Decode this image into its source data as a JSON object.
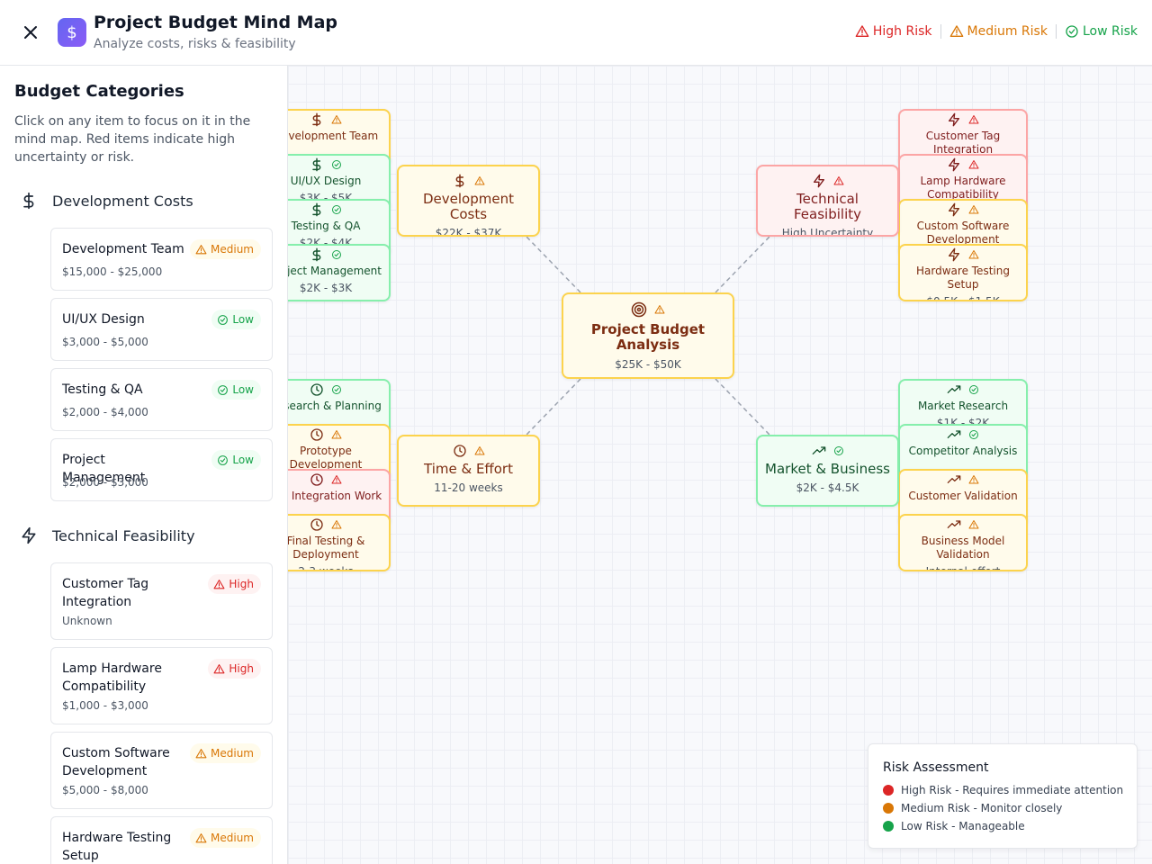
{
  "header": {
    "title": "Project Budget Mind Map",
    "subtitle": "Analyze costs, risks & feasibility",
    "logo_icon": "dollar-icon",
    "legend": {
      "high": "High Risk",
      "medium": "Medium Risk",
      "low": "Low Risk"
    }
  },
  "colors": {
    "high": "#dc2626",
    "medium": "#d97706",
    "low": "#16a34a",
    "accent": "#6366f1"
  },
  "sidebar": {
    "title": "Budget Categories",
    "description": "Click on any item to focus on it in the mind map. Red items indicate high uncertainty or risk.",
    "categories": [
      {
        "name": "Development Costs",
        "icon": "dollar-icon",
        "items": [
          {
            "name": "Development Team",
            "cost": "$15,000 - $25,000",
            "risk": "Medium"
          },
          {
            "name": "UI/UX Design",
            "cost": "$3,000 - $5,000",
            "risk": "Low"
          },
          {
            "name": "Testing & QA",
            "cost": "$2,000 - $4,000",
            "risk": "Low"
          },
          {
            "name": "Project Management",
            "cost": "$2,000 - $3,000",
            "risk": "Low"
          }
        ]
      },
      {
        "name": "Technical Feasibility",
        "icon": "zap-icon",
        "items": [
          {
            "name": "Customer Tag Integration",
            "cost": "Unknown",
            "risk": "High"
          },
          {
            "name": "Lamp Hardware Compatibility",
            "cost": "$1,000 - $3,000",
            "risk": "High"
          },
          {
            "name": "Custom Software Development",
            "cost": "$5,000 - $8,000",
            "risk": "Medium"
          },
          {
            "name": "Hardware Testing Setup",
            "cost": "",
            "risk": "Medium"
          }
        ]
      }
    ]
  },
  "mindmap": {
    "center": {
      "label": "Project Budget Analysis",
      "sub": "$25K - $50K"
    },
    "branches": {
      "dev": {
        "label": "Development Costs",
        "sub": "$22K - $37K"
      },
      "tech": {
        "label": "Technical Feasibility",
        "sub": "High Uncertainty"
      },
      "time": {
        "label": "Time & Effort",
        "sub": "11-20 weeks"
      },
      "market": {
        "label": "Market & Business",
        "sub": "$2K - $4.5K"
      }
    },
    "leaves": {
      "dev": [
        {
          "label": "Development Team",
          "sub": ""
        },
        {
          "label": "UI/UX Design",
          "sub": "$3K - $5K"
        },
        {
          "label": "Testing & QA",
          "sub": "$2K - $4K"
        },
        {
          "label": "Project Management",
          "sub": "$2K - $3K"
        }
      ],
      "tech": [
        {
          "label": "Customer Tag Integration",
          "sub": ""
        },
        {
          "label": "Lamp Hardware Compatibility",
          "sub": ""
        },
        {
          "label": "Custom Software Development",
          "sub": ""
        },
        {
          "label": "Hardware Testing Setup",
          "sub": "$0.5K - $1.5K"
        }
      ],
      "time": [
        {
          "label": "Research & Planning",
          "sub": ""
        },
        {
          "label": "Prototype Development",
          "sub": ""
        },
        {
          "label": "Tag Integration Work",
          "sub": ""
        },
        {
          "label": "Final Testing & Deployment",
          "sub": "2-3 weeks"
        }
      ],
      "market": [
        {
          "label": "Market Research",
          "sub": "$1K - $2K"
        },
        {
          "label": "Competitor Analysis",
          "sub": ""
        },
        {
          "label": "Customer Validation",
          "sub": ""
        },
        {
          "label": "Business Model Validation",
          "sub": "Internal effort"
        }
      ]
    }
  },
  "risk_assessment": {
    "title": "Risk Assessment",
    "high": "High Risk - Requires immediate attention",
    "medium": "Medium Risk - Monitor closely",
    "low": "Low Risk - Manageable"
  }
}
